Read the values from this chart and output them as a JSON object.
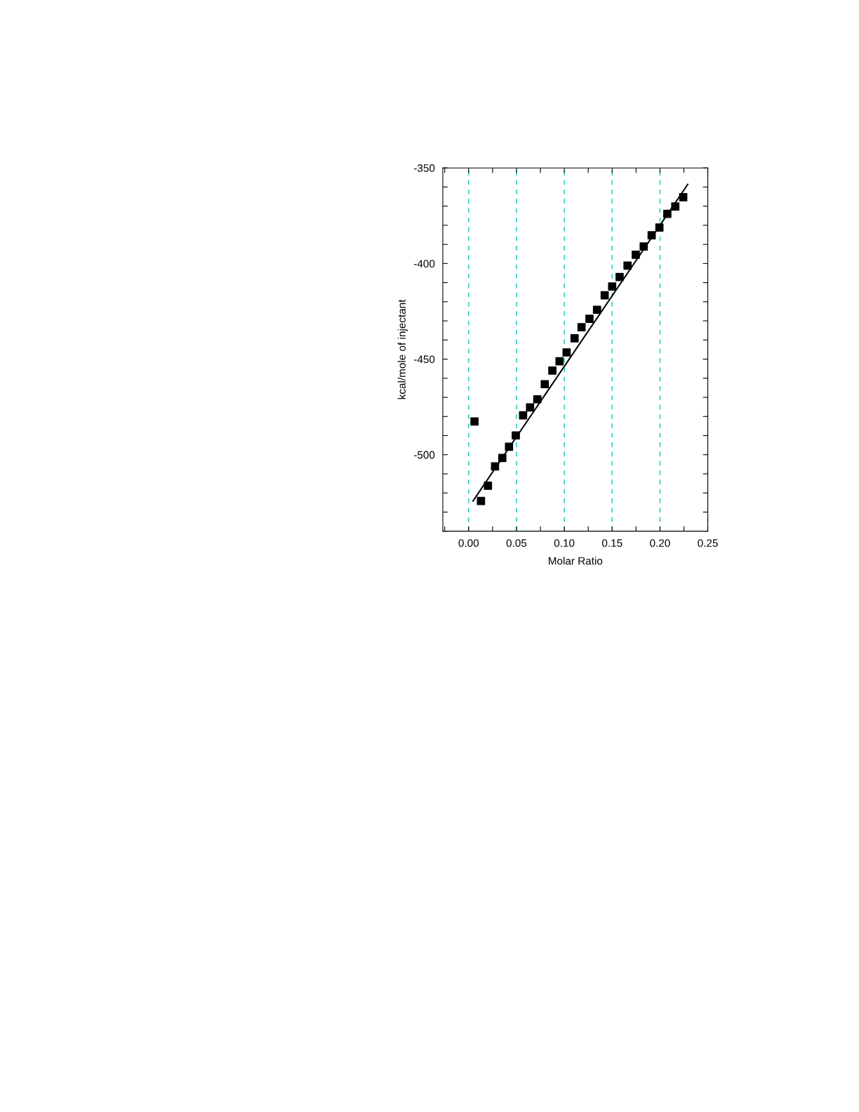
{
  "chart_data": {
    "type": "scatter",
    "xlabel": "Molar Ratio",
    "ylabel": "kcal/mole of injectant",
    "xlim": [
      -0.027,
      0.25
    ],
    "ylim": [
      -540,
      -350
    ],
    "xticks": [
      {
        "value": -0.025,
        "label": null
      },
      {
        "value": 0,
        "label": "0.00"
      },
      {
        "value": 0.025,
        "label": null
      },
      {
        "value": 0.05,
        "label": "0.05"
      },
      {
        "value": 0.075,
        "label": null
      },
      {
        "value": 0.1,
        "label": "0.10"
      },
      {
        "value": 0.125,
        "label": null
      },
      {
        "value": 0.15,
        "label": "0.15"
      },
      {
        "value": 0.175,
        "label": null
      },
      {
        "value": 0.2,
        "label": "0.20"
      },
      {
        "value": 0.225,
        "label": null
      },
      {
        "value": 0.25,
        "label": "0.25"
      }
    ],
    "yticks": [
      {
        "value": -540,
        "label": null
      },
      {
        "value": -530,
        "label": null
      },
      {
        "value": -520,
        "label": null
      },
      {
        "value": -510,
        "label": null
      },
      {
        "value": -500,
        "label": "-500"
      },
      {
        "value": -490,
        "label": null
      },
      {
        "value": -480,
        "label": null
      },
      {
        "value": -470,
        "label": null
      },
      {
        "value": -460,
        "label": null
      },
      {
        "value": -450,
        "label": "-450"
      },
      {
        "value": -440,
        "label": null
      },
      {
        "value": -430,
        "label": null
      },
      {
        "value": -420,
        "label": null
      },
      {
        "value": -410,
        "label": null
      },
      {
        "value": -400,
        "label": "-400"
      },
      {
        "value": -390,
        "label": null
      },
      {
        "value": -380,
        "label": null
      },
      {
        "value": -370,
        "label": null
      },
      {
        "value": -360,
        "label": null
      },
      {
        "value": -350,
        "label": "-350"
      }
    ],
    "grid": "x",
    "legend": false,
    "series": [
      {
        "marker": "square",
        "color": "#000000",
        "x": [
          0.0061,
          0.0129,
          0.0202,
          0.0276,
          0.0352,
          0.0422,
          0.0493,
          0.0569,
          0.0642,
          0.0718,
          0.0796,
          0.0875,
          0.095,
          0.1024,
          0.1107,
          0.118,
          0.1263,
          0.1342,
          0.1422,
          0.15,
          0.1578,
          0.1661,
          0.1747,
          0.183,
          0.1913,
          0.1994,
          0.2077,
          0.216,
          0.2243
        ],
        "values": [
          -482.6,
          -524.2,
          -516.2,
          -506.1,
          -501.7,
          -495.8,
          -489.9,
          -479.4,
          -475.3,
          -471.0,
          -463.1,
          -456.0,
          -451.1,
          -446.5,
          -439.1,
          -433.3,
          -428.9,
          -424.2,
          -416.6,
          -412.0,
          -407.1,
          -401.1,
          -395.4,
          -391.1,
          -385.2,
          -381.2,
          -374.0,
          -370.2,
          -365.3
        ]
      },
      {
        "type": "line",
        "line_style": "solid",
        "color": "#000000",
        "x": [
          0.0046,
          0.229
        ],
        "values": [
          -524.2,
          -358.6
        ]
      }
    ]
  }
}
